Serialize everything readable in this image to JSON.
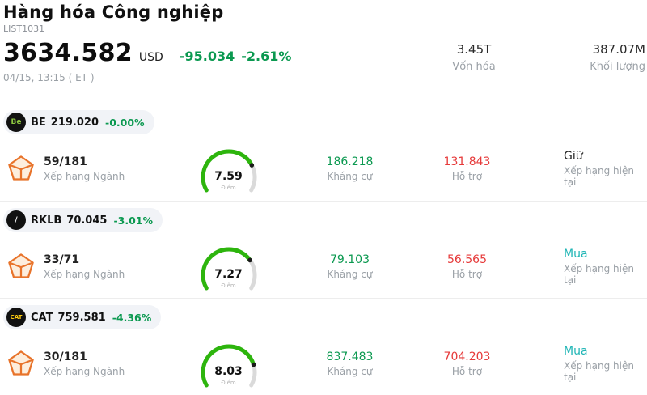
{
  "header": {
    "title": "Hàng hóa Công nghiệp",
    "list_id": "LIST1031",
    "price": "3634.582",
    "currency": "USD",
    "change": "-95.034",
    "change_pct": "-2.61%",
    "datetime": "04/15, 13:15 ( ET )",
    "market_cap": {
      "value": "3.45T",
      "label": "Vốn hóa"
    },
    "volume": {
      "value": "387.07M",
      "label": "Khối lượng"
    }
  },
  "labels": {
    "rank": "Xếp hạng Ngành",
    "score": "Điểm",
    "resistance": "Kháng cự",
    "support": "Hỗ trợ",
    "rating": "Xếp hạng hiện tại"
  },
  "colors": {
    "down_green": "#0b9950",
    "support_red": "#e63a3a",
    "buy_teal": "#1fb5b5",
    "gauge_green": "#2db50d",
    "hold_black": "#222222"
  },
  "rows": [
    {
      "ticker": "BE",
      "price": "219.020",
      "change_pct": "-0.00%",
      "logo_text": "Be",
      "logo_bg": "#111111",
      "logo_fg": "#8cc63f",
      "rank": "59/181",
      "score": 7.59,
      "resistance": "186.218",
      "support": "131.843",
      "rating": "Giữ",
      "rating_color": "#222222"
    },
    {
      "ticker": "RKLB",
      "price": "70.045",
      "change_pct": "-3.01%",
      "logo_text": "/",
      "logo_bg": "#111111",
      "logo_fg": "#ffffff",
      "rank": "33/71",
      "score": 7.27,
      "resistance": "79.103",
      "support": "56.565",
      "rating": "Mua",
      "rating_color": "#1fb5b5"
    },
    {
      "ticker": "CAT",
      "price": "759.581",
      "change_pct": "-4.36%",
      "logo_text": "CAT",
      "logo_bg": "#111111",
      "logo_fg": "#ffcd11",
      "rank": "30/181",
      "score": 8.03,
      "resistance": "837.483",
      "support": "704.203",
      "rating": "Mua",
      "rating_color": "#1fb5b5"
    }
  ]
}
